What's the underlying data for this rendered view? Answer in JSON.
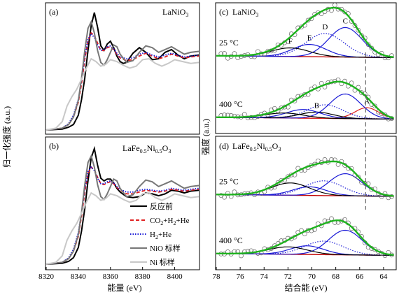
{
  "chart_data": [
    {
      "type": "line",
      "panel": "a",
      "label": "(a)",
      "sample": "LaNiO3",
      "xlim": [
        8320,
        8415
      ],
      "ylim": [
        0,
        1.3
      ],
      "ylabel": "归一化强度 (a.u.)",
      "series": [
        {
          "name": "反应前",
          "color": "#000000",
          "style": "solid",
          "x": [
            8320,
            8330,
            8334,
            8337,
            8340,
            8342,
            8344,
            8346,
            8348,
            8350,
            8352,
            8354,
            8356,
            8358,
            8360,
            8362,
            8364,
            8366,
            8368,
            8370,
            8374,
            8378,
            8382,
            8386,
            8390,
            8394,
            8398,
            8402,
            8406,
            8410,
            8415
          ],
          "y": [
            0.0,
            0.01,
            0.03,
            0.06,
            0.16,
            0.33,
            0.56,
            0.86,
            1.13,
            1.27,
            1.11,
            0.91,
            0.86,
            0.93,
            0.96,
            0.89,
            0.8,
            0.74,
            0.72,
            0.73,
            0.83,
            0.89,
            0.84,
            0.76,
            0.77,
            0.84,
            0.87,
            0.81,
            0.77,
            0.8,
            0.81
          ]
        },
        {
          "name": "CO2+H2+He",
          "color": "#e02020",
          "style": "dash",
          "x": [
            8320,
            8330,
            8334,
            8337,
            8340,
            8342,
            8344,
            8346,
            8348,
            8350,
            8352,
            8354,
            8356,
            8358,
            8360,
            8362,
            8364,
            8366,
            8370,
            8374,
            8378,
            8382,
            8386,
            8390,
            8394,
            8398,
            8402,
            8406,
            8410,
            8415
          ],
          "y": [
            0.0,
            0.02,
            0.06,
            0.14,
            0.3,
            0.5,
            0.76,
            0.96,
            1.05,
            1.02,
            0.94,
            0.86,
            0.86,
            0.89,
            0.9,
            0.87,
            0.82,
            0.78,
            0.75,
            0.76,
            0.8,
            0.83,
            0.8,
            0.77,
            0.79,
            0.82,
            0.8,
            0.78,
            0.79,
            0.8
          ]
        },
        {
          "name": "H2+He",
          "color": "#1a1ad6",
          "style": "dot",
          "x": [
            8320,
            8330,
            8334,
            8337,
            8340,
            8342,
            8344,
            8346,
            8348,
            8350,
            8352,
            8354,
            8356,
            8358,
            8360,
            8362,
            8364,
            8366,
            8370,
            8374,
            8378,
            8382,
            8386,
            8390,
            8394,
            8398,
            8402,
            8406,
            8410,
            8415
          ],
          "y": [
            0.0,
            0.02,
            0.07,
            0.16,
            0.33,
            0.54,
            0.79,
            0.98,
            1.04,
            1.0,
            0.92,
            0.86,
            0.87,
            0.9,
            0.91,
            0.88,
            0.83,
            0.79,
            0.77,
            0.78,
            0.82,
            0.84,
            0.81,
            0.79,
            0.81,
            0.83,
            0.81,
            0.79,
            0.8,
            0.81
          ]
        },
        {
          "name": "NiO 标样",
          "color": "#777777",
          "style": "solid",
          "x": [
            8320,
            8330,
            8334,
            8337,
            8340,
            8342,
            8344,
            8346,
            8348,
            8350,
            8352,
            8354,
            8356,
            8358,
            8360,
            8362,
            8364,
            8366,
            8370,
            8374,
            8378,
            8382,
            8386,
            8390,
            8394,
            8398,
            8402,
            8406,
            8410,
            8415
          ],
          "y": [
            0.0,
            0.02,
            0.06,
            0.14,
            0.32,
            0.56,
            0.86,
            1.1,
            1.17,
            1.05,
            0.86,
            0.73,
            0.7,
            0.76,
            0.84,
            0.92,
            0.9,
            0.82,
            0.73,
            0.75,
            0.84,
            0.91,
            0.89,
            0.84,
            0.87,
            0.9,
            0.86,
            0.82,
            0.84,
            0.85
          ]
        },
        {
          "name": "Ni 标样",
          "color": "#c8c8c8",
          "style": "solid",
          "x": [
            8320,
            8326,
            8330,
            8333,
            8336,
            8339,
            8342,
            8345,
            8348,
            8351,
            8354,
            8357,
            8360,
            8364,
            8368,
            8372,
            8376,
            8380,
            8384,
            8388,
            8392,
            8396,
            8400,
            8405,
            8410,
            8415
          ],
          "y": [
            0.0,
            0.02,
            0.09,
            0.26,
            0.36,
            0.44,
            0.55,
            0.67,
            0.77,
            0.74,
            0.69,
            0.71,
            0.76,
            0.74,
            0.7,
            0.67,
            0.69,
            0.76,
            0.77,
            0.72,
            0.69,
            0.72,
            0.76,
            0.74,
            0.72,
            0.73
          ]
        }
      ]
    },
    {
      "type": "line",
      "panel": "b",
      "label": "(b)",
      "sample": "LaFe0.5Ni0.5O3",
      "xlabel": "能量 (eV)",
      "xlim": [
        8320,
        8415
      ],
      "ylim": [
        0,
        1.3
      ],
      "xticks": [
        8320,
        8340,
        8360,
        8380,
        8400
      ],
      "legend": [
        "反应前",
        "CO2+H2+He",
        "H2+He",
        "NiO 标样",
        "Ni 标样"
      ],
      "legend_position": "bottom-right",
      "series": [
        {
          "name": "反应前",
          "color": "#000000",
          "style": "solid",
          "x": [
            8320,
            8330,
            8334,
            8337,
            8340,
            8342,
            8344,
            8346,
            8348,
            8350,
            8352,
            8354,
            8356,
            8358,
            8360,
            8362,
            8364,
            8366,
            8370,
            8374,
            8378,
            8382,
            8386,
            8390,
            8394,
            8398,
            8402,
            8406,
            8410,
            8415
          ],
          "y": [
            0.0,
            0.01,
            0.03,
            0.07,
            0.18,
            0.36,
            0.6,
            0.9,
            1.15,
            1.25,
            1.07,
            0.93,
            0.9,
            0.92,
            0.92,
            0.88,
            0.82,
            0.78,
            0.73,
            0.72,
            0.73,
            0.77,
            0.76,
            0.74,
            0.76,
            0.8,
            0.79,
            0.77,
            0.79,
            0.8
          ]
        },
        {
          "name": "CO2+H2+He",
          "color": "#e02020",
          "style": "dash",
          "x": [
            8320,
            8330,
            8334,
            8337,
            8340,
            8342,
            8344,
            8346,
            8348,
            8350,
            8352,
            8354,
            8356,
            8358,
            8360,
            8362,
            8364,
            8366,
            8370,
            8374,
            8378,
            8382,
            8386,
            8390,
            8394,
            8398,
            8402,
            8406,
            8410,
            8415
          ],
          "y": [
            0.0,
            0.02,
            0.06,
            0.14,
            0.3,
            0.52,
            0.78,
            0.98,
            1.05,
            1.02,
            0.94,
            0.87,
            0.86,
            0.88,
            0.89,
            0.87,
            0.83,
            0.8,
            0.76,
            0.76,
            0.78,
            0.8,
            0.79,
            0.78,
            0.79,
            0.81,
            0.8,
            0.79,
            0.8,
            0.81
          ]
        },
        {
          "name": "H2+He",
          "color": "#1a1ad6",
          "style": "dot",
          "x": [
            8320,
            8330,
            8334,
            8337,
            8340,
            8342,
            8344,
            8346,
            8348,
            8350,
            8352,
            8354,
            8356,
            8358,
            8360,
            8362,
            8364,
            8366,
            8370,
            8374,
            8378,
            8382,
            8386,
            8390,
            8394,
            8398,
            8402,
            8406,
            8410,
            8415
          ],
          "y": [
            0.0,
            0.02,
            0.07,
            0.16,
            0.34,
            0.56,
            0.81,
            1.0,
            1.05,
            1.01,
            0.93,
            0.87,
            0.87,
            0.89,
            0.9,
            0.88,
            0.84,
            0.81,
            0.78,
            0.78,
            0.8,
            0.81,
            0.8,
            0.79,
            0.8,
            0.82,
            0.81,
            0.8,
            0.81,
            0.82
          ]
        },
        {
          "name": "NiO 标样",
          "color": "#777777",
          "style": "solid",
          "x": [
            8320,
            8330,
            8334,
            8337,
            8340,
            8342,
            8344,
            8346,
            8348,
            8350,
            8352,
            8354,
            8356,
            8358,
            8360,
            8362,
            8364,
            8366,
            8370,
            8374,
            8378,
            8382,
            8386,
            8390,
            8394,
            8398,
            8402,
            8406,
            8410,
            8415
          ],
          "y": [
            0.0,
            0.02,
            0.06,
            0.14,
            0.32,
            0.56,
            0.86,
            1.1,
            1.17,
            1.05,
            0.86,
            0.73,
            0.7,
            0.76,
            0.84,
            0.92,
            0.9,
            0.82,
            0.73,
            0.75,
            0.84,
            0.91,
            0.89,
            0.84,
            0.87,
            0.9,
            0.86,
            0.82,
            0.84,
            0.85
          ]
        },
        {
          "name": "Ni 标样",
          "color": "#c8c8c8",
          "style": "solid",
          "x": [
            8320,
            8326,
            8330,
            8333,
            8336,
            8339,
            8342,
            8345,
            8348,
            8351,
            8354,
            8357,
            8360,
            8364,
            8368,
            8372,
            8376,
            8380,
            8384,
            8388,
            8392,
            8396,
            8400,
            8405,
            8410,
            8415
          ],
          "y": [
            0.0,
            0.02,
            0.09,
            0.26,
            0.36,
            0.44,
            0.55,
            0.67,
            0.77,
            0.74,
            0.69,
            0.71,
            0.76,
            0.74,
            0.7,
            0.67,
            0.69,
            0.76,
            0.77,
            0.72,
            0.69,
            0.72,
            0.76,
            0.74,
            0.72,
            0.73
          ]
        }
      ]
    },
    {
      "type": "scatter",
      "panel": "c",
      "label": "(c)",
      "sample": "LaNiO3",
      "xlim": [
        78,
        63
      ],
      "ylim": [
        0,
        1
      ],
      "peak_labels": [
        "A",
        "B",
        "C",
        "D",
        "E",
        "F"
      ],
      "dashed_reference_x": 65.5,
      "spectra": [
        {
          "temperature": "25 °C",
          "offset": 0.58,
          "peaks": [
            {
              "label": "C",
              "center": 67.2,
              "height": 0.24,
              "width": 1.4,
              "color": "#1a1ad6",
              "style": "solid"
            },
            {
              "label": "D",
              "center": 68.9,
              "height": 0.19,
              "width": 1.6,
              "color": "#1a1ad6",
              "style": "dot"
            },
            {
              "label": "E",
              "center": 70.2,
              "height": 0.1,
              "width": 1.4,
              "color": "#1a1ad6",
              "style": "solid"
            },
            {
              "label": "F",
              "center": 71.8,
              "height": 0.07,
              "width": 1.6,
              "color": "#000000",
              "style": "solid"
            }
          ]
        },
        {
          "temperature": "400 °C",
          "offset": 0.08,
          "peaks": [
            {
              "label": "A",
              "center": 65.4,
              "height": 0.09,
              "width": 1.0,
              "color": "#e02020",
              "style": "solid"
            },
            {
              "label": "",
              "center": 67.2,
              "height": 0.2,
              "width": 1.3,
              "color": "#1a1ad6",
              "style": "solid"
            },
            {
              "label": "",
              "center": 68.9,
              "height": 0.11,
              "width": 1.5,
              "color": "#1a1ad6",
              "style": "dot"
            },
            {
              "label": "B",
              "center": 69.6,
              "height": 0.05,
              "width": 1.4,
              "color": "#000000",
              "style": "solid"
            },
            {
              "label": "",
              "center": 70.7,
              "height": 0.07,
              "width": 1.4,
              "color": "#1a1ad6",
              "style": "solid"
            },
            {
              "label": "",
              "center": 72.3,
              "height": 0.04,
              "width": 1.6,
              "color": "#000000",
              "style": "solid"
            }
          ]
        }
      ]
    },
    {
      "type": "scatter",
      "panel": "d",
      "label": "(d)",
      "sample": "LaFe0.5Ni0.5O3",
      "xlabel": "结合能 (eV)",
      "ylabel": "强度 (a.u.)",
      "xlim": [
        78,
        63
      ],
      "ylim": [
        0,
        1
      ],
      "xticks": [
        78,
        76,
        74,
        72,
        70,
        68,
        66,
        64
      ],
      "dashed_reference_x": 65.5,
      "spectra": [
        {
          "temperature": "25 °C",
          "offset": 0.56,
          "peaks": [
            {
              "label": "",
              "center": 67.2,
              "height": 0.18,
              "width": 1.4,
              "color": "#1a1ad6",
              "style": "solid"
            },
            {
              "label": "",
              "center": 69.0,
              "height": 0.12,
              "width": 1.6,
              "color": "#1a1ad6",
              "style": "dot"
            },
            {
              "label": "",
              "center": 70.2,
              "height": 0.07,
              "width": 1.4,
              "color": "#1a1ad6",
              "style": "solid"
            },
            {
              "label": "",
              "center": 71.8,
              "height": 0.1,
              "width": 1.6,
              "color": "#000000",
              "style": "solid"
            }
          ]
        },
        {
          "temperature": "400 °C",
          "offset": 0.08,
          "peaks": [
            {
              "label": "",
              "center": 67.2,
              "height": 0.2,
              "width": 1.4,
              "color": "#1a1ad6",
              "style": "solid"
            },
            {
              "label": "",
              "center": 69.0,
              "height": 0.11,
              "width": 1.6,
              "color": "#1a1ad6",
              "style": "dot"
            },
            {
              "label": "",
              "center": 70.4,
              "height": 0.07,
              "width": 1.4,
              "color": "#1a1ad6",
              "style": "solid"
            },
            {
              "label": "",
              "center": 72.0,
              "height": 0.06,
              "width": 1.6,
              "color": "#000000",
              "style": "solid"
            }
          ]
        }
      ]
    }
  ],
  "colors": {
    "envelope": "#1db31d",
    "background": "#c00000",
    "points": "#666666",
    "dashed_line": "#555555"
  }
}
